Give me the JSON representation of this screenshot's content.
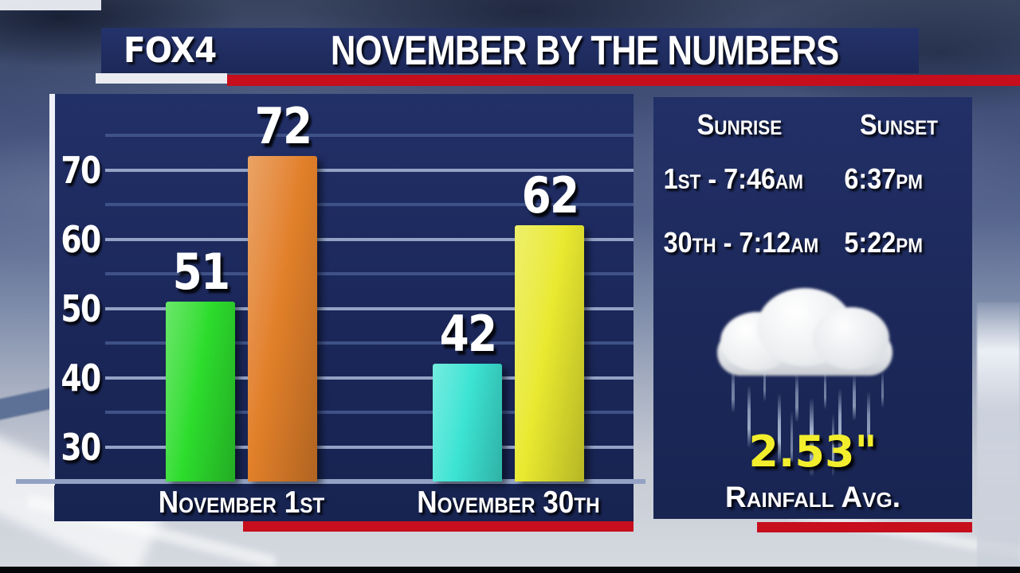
{
  "header": {
    "station": "FOX4",
    "title": "NOVEMBER BY THE NUMBERS"
  },
  "chart_data": {
    "type": "bar",
    "title": "NOVEMBER BY THE NUMBERS",
    "categories": [
      "November 1st",
      "November 30th"
    ],
    "groups": [
      {
        "category": "November 1st",
        "bars": [
          {
            "value": 51,
            "color": "#2ddd2d"
          },
          {
            "value": 72,
            "color": "#e2802a"
          }
        ]
      },
      {
        "category": "November 30th",
        "bars": [
          {
            "value": 42,
            "color": "#3ce4d4"
          },
          {
            "value": 62,
            "color": "#e9e930"
          }
        ]
      }
    ],
    "yticks": [
      30,
      40,
      50,
      60,
      70
    ],
    "minor_gridlines": [
      35,
      45,
      55,
      65,
      75
    ],
    "ylim": [
      25,
      81
    ],
    "grid": "horizontal",
    "legend": "none"
  },
  "side_panel": {
    "sunrise_header": "Sunrise",
    "sunset_header": "Sunset",
    "rows": [
      {
        "sunrise": "1st - 7:46am",
        "sunset": "6:37pm"
      },
      {
        "sunrise": "30th - 7:12am",
        "sunset": "5:22pm"
      }
    ],
    "rainfall_value": "2.53\"",
    "rainfall_label": "Rainfall Avg."
  },
  "colors": {
    "panel_navy": "#1c2859",
    "stripe_red": "#c60e1d",
    "rainfall_yellow": "#f2ee2d",
    "grid_major": "#93a3c6",
    "grid_minor": "#3f5288",
    "axis_white": "#eef1f7",
    "baseline_steel": "#93a2c4"
  }
}
